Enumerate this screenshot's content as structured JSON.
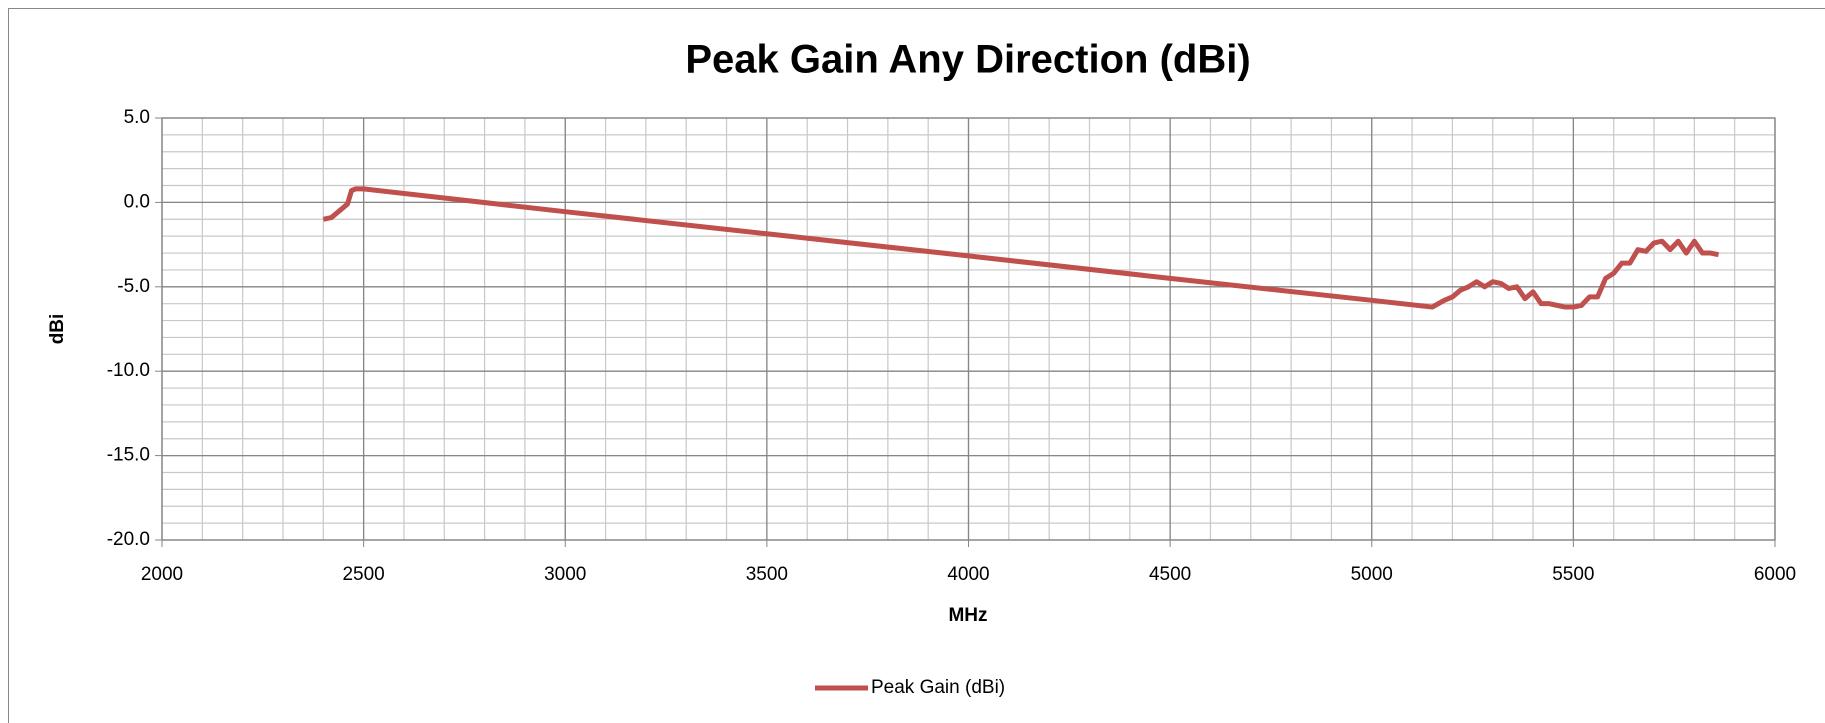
{
  "chart_data": {
    "type": "line",
    "title": "Peak Gain Any Direction (dBi)",
    "x_label": "MHz",
    "y_label": "dBi",
    "x": [
      2400,
      2420,
      2440,
      2460,
      2470,
      2480,
      2500,
      3000,
      3500,
      4000,
      4500,
      5000,
      5150,
      5180,
      5200,
      5220,
      5240,
      5260,
      5280,
      5300,
      5320,
      5340,
      5360,
      5380,
      5400,
      5420,
      5440,
      5460,
      5480,
      5500,
      5520,
      5540,
      5560,
      5580,
      5600,
      5620,
      5640,
      5660,
      5680,
      5700,
      5720,
      5740,
      5760,
      5780,
      5800,
      5820,
      5840,
      5860
    ],
    "series": [
      {
        "name": "Peak Gain (dBi)",
        "color": "#c0504d",
        "values": [
          -1.0,
          -0.9,
          -0.5,
          -0.1,
          0.7,
          0.8,
          0.8,
          -0.55,
          -1.86,
          -3.17,
          -4.5,
          -5.8,
          -6.2,
          -5.8,
          -5.6,
          -5.2,
          -5.0,
          -4.7,
          -5.0,
          -4.7,
          -4.8,
          -5.1,
          -5.0,
          -5.7,
          -5.3,
          -6.0,
          -6.0,
          -6.1,
          -6.2,
          -6.2,
          -6.1,
          -5.6,
          -5.6,
          -4.5,
          -4.2,
          -3.6,
          -3.6,
          -2.8,
          -2.9,
          -2.4,
          -2.3,
          -2.8,
          -2.3,
          -3.0,
          -2.3,
          -3.0,
          -3.0,
          -3.1
        ]
      }
    ],
    "xlim": [
      2000,
      6000
    ],
    "xticks": [
      2000,
      2500,
      3000,
      3500,
      4000,
      4500,
      5000,
      5500,
      6000
    ],
    "ylim": [
      -20,
      5
    ],
    "yticks": [
      {
        "value": 5,
        "label": "5.0"
      },
      {
        "value": 0,
        "label": "0.0"
      },
      {
        "value": -5,
        "label": "-5.0"
      },
      {
        "value": -10,
        "label": "-10.0"
      },
      {
        "value": -15,
        "label": "-15.0"
      },
      {
        "value": -20,
        "label": "-20.0"
      }
    ],
    "grid": true,
    "x_minor_step": 100,
    "y_minor_step": 1,
    "legend": "bottom"
  }
}
